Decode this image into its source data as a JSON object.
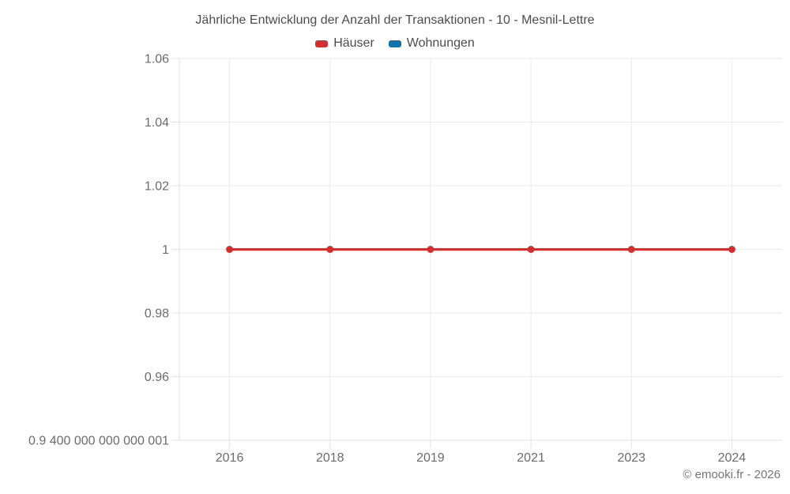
{
  "title": "Jährliche Entwicklung der Anzahl der Transaktionen - 10 - Mesnil-Lettre",
  "attribution": "© emooki.fr - 2026",
  "legend": {
    "items": [
      {
        "label": "Häuser",
        "color": "#d32f2f"
      },
      {
        "label": "Wohnungen",
        "color": "#1273aa"
      }
    ]
  },
  "chart_data": {
    "type": "line",
    "title": "Jährliche Entwicklung der Anzahl der Transaktionen - 10 - Mesnil-Lettre",
    "categories": [
      "2016",
      "2018",
      "2019",
      "2021",
      "2023",
      "2024"
    ],
    "series": [
      {
        "name": "Häuser",
        "color": "#d32f2f",
        "values": [
          1,
          1,
          1,
          1,
          1,
          1
        ]
      },
      {
        "name": "Wohnungen",
        "color": "#1273aa",
        "values": []
      }
    ],
    "xlabel": "",
    "ylabel": "",
    "ylim": [
      0.94,
      1.06
    ],
    "y_ticks": [
      {
        "value": 1.06,
        "label": "1.06"
      },
      {
        "value": 1.04,
        "label": "1.04"
      },
      {
        "value": 1.02,
        "label": "1.02"
      },
      {
        "value": 1.0,
        "label": "1"
      },
      {
        "value": 0.98,
        "label": "0.98"
      },
      {
        "value": 0.96,
        "label": "0.96"
      },
      {
        "value": 0.94,
        "label": "0.9 400 000 000 000 001"
      }
    ],
    "grid": true,
    "legend_position": "top"
  },
  "colors": {
    "grid": "#eaeaea",
    "axis": "#e0e0e0",
    "tick_label": "#6b6b6b",
    "title_text": "#4c4c4c",
    "attribution_text": "#757575",
    "background": "#ffffff"
  }
}
